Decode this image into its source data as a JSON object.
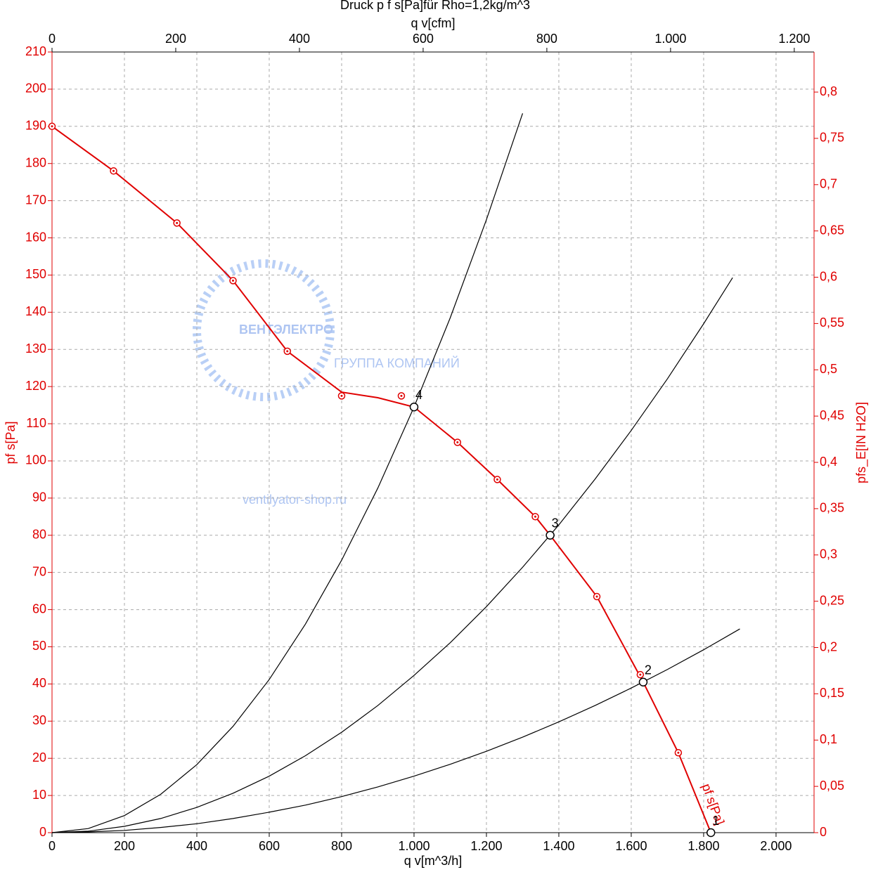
{
  "chart_data": {
    "type": "line",
    "title": "Druck p f s[Pa]für Rho=1,2kg/m^3",
    "xlabel": "q v[m^3/h]",
    "x2label": "q v[cfm]",
    "ylabel": "pf s[Pa]",
    "y2label": "pfs_E[IN H2O]",
    "xlim": [
      0,
      2105
    ],
    "xticks": [
      0,
      200,
      400,
      600,
      800,
      {
        "value": 1000,
        "label": "1.000"
      },
      {
        "value": 1200,
        "label": "1.200"
      },
      {
        "value": 1400,
        "label": "1.400"
      },
      {
        "value": 1600,
        "label": "1.600"
      },
      {
        "value": 1800,
        "label": "1.800"
      },
      {
        "value": 2000,
        "label": "2.000"
      }
    ],
    "x2lim": [
      0,
      1232
    ],
    "x2ticks": [
      0,
      200,
      400,
      600,
      800,
      {
        "value": 1000,
        "label": "1.000"
      },
      {
        "value": 1200,
        "label": "1.200"
      }
    ],
    "ylim": [
      0,
      210
    ],
    "yticks": [
      0,
      10,
      20,
      30,
      40,
      50,
      60,
      70,
      80,
      90,
      100,
      110,
      120,
      130,
      140,
      150,
      160,
      170,
      180,
      190,
      200,
      210
    ],
    "y2lim": [
      0,
      0.8433
    ],
    "y2ticks": [
      0,
      {
        "value": 0.05,
        "label": "0,05"
      },
      {
        "value": 0.1,
        "label": "0,1"
      },
      {
        "value": 0.15,
        "label": "0,15"
      },
      {
        "value": 0.2,
        "label": "0,2"
      },
      {
        "value": 0.25,
        "label": "0,25"
      },
      {
        "value": 0.3,
        "label": "0,3"
      },
      {
        "value": 0.35,
        "label": "0,35"
      },
      {
        "value": 0.4,
        "label": "0,4"
      },
      {
        "value": 0.45,
        "label": "0,45"
      },
      {
        "value": 0.5,
        "label": "0,5"
      },
      {
        "value": 0.55,
        "label": "0,55"
      },
      {
        "value": 0.6,
        "label": "0,6"
      },
      {
        "value": 0.65,
        "label": "0,65"
      },
      {
        "value": 0.7,
        "label": "0,7"
      },
      {
        "value": 0.75,
        "label": "0,75"
      },
      {
        "value": 0.8,
        "label": "0,8"
      }
    ],
    "grid": true,
    "fan_curve": {
      "name": "pf s[Pa]",
      "color": "#e00000",
      "x": [
        0,
        170,
        345,
        500,
        650,
        800,
        900,
        1000,
        1120,
        1230,
        1335,
        1376,
        1505,
        1633,
        1730,
        1820
      ],
      "values": [
        190,
        178,
        164,
        148.5,
        129.5,
        118.5,
        117,
        114.5,
        105,
        95,
        85,
        80,
        63.5,
        40.5,
        21.5,
        0
      ],
      "marker_x": [
        0,
        170,
        345,
        500,
        650,
        800,
        965,
        1120,
        1230,
        1335,
        1505,
        1625,
        1730
      ],
      "marker_values": [
        190,
        178,
        164,
        148.5,
        129.5,
        117.5,
        117.5,
        105,
        95,
        85,
        63.5,
        42.5,
        21.5
      ]
    },
    "series": [
      {
        "color": "#000000",
        "x": [
          0,
          100,
          200,
          300,
          400,
          500,
          600,
          700,
          800,
          900,
          1000,
          1100,
          1200,
          1300
        ],
        "values": [
          0,
          1.1,
          4.6,
          10.3,
          18.3,
          28.6,
          41.2,
          56.1,
          73.3,
          92.7,
          114.5,
          138.5,
          164.9,
          193.5
        ]
      },
      {
        "color": "#000000",
        "x": [
          0,
          100,
          200,
          300,
          400,
          500,
          600,
          700,
          800,
          900,
          1000,
          1100,
          1200,
          1300,
          1400,
          1500,
          1600,
          1700,
          1800,
          1880
        ],
        "values": [
          0,
          0.4,
          1.7,
          3.8,
          6.8,
          10.6,
          15.2,
          20.7,
          27.0,
          34.2,
          42.3,
          51.1,
          60.8,
          71.4,
          82.8,
          95.1,
          108.2,
          122.1,
          136.9,
          149.3
        ]
      },
      {
        "color": "#000000",
        "x": [
          0,
          100,
          200,
          300,
          400,
          500,
          600,
          700,
          800,
          900,
          1000,
          1100,
          1200,
          1300,
          1400,
          1500,
          1600,
          1700,
          1800,
          1900
        ],
        "values": [
          0,
          0.2,
          0.6,
          1.4,
          2.4,
          3.8,
          5.5,
          7.4,
          9.7,
          12.3,
          15.2,
          18.4,
          21.9,
          25.7,
          29.8,
          34.2,
          38.9,
          43.9,
          49.2,
          54.8
        ]
      }
    ],
    "points": [
      {
        "label": "1",
        "x": 1820,
        "y": 0
      },
      {
        "label": "2",
        "x": 1633,
        "y": 40.5
      },
      {
        "label": "3",
        "x": 1376,
        "y": 80
      },
      {
        "label": "4",
        "x": 1000,
        "y": 114.5
      }
    ],
    "watermarks": [
      "ВЕНТЭЛЕКТРО",
      "ГРУППА КОМПАНИЙ",
      "ventilyator-shop.ru"
    ]
  }
}
